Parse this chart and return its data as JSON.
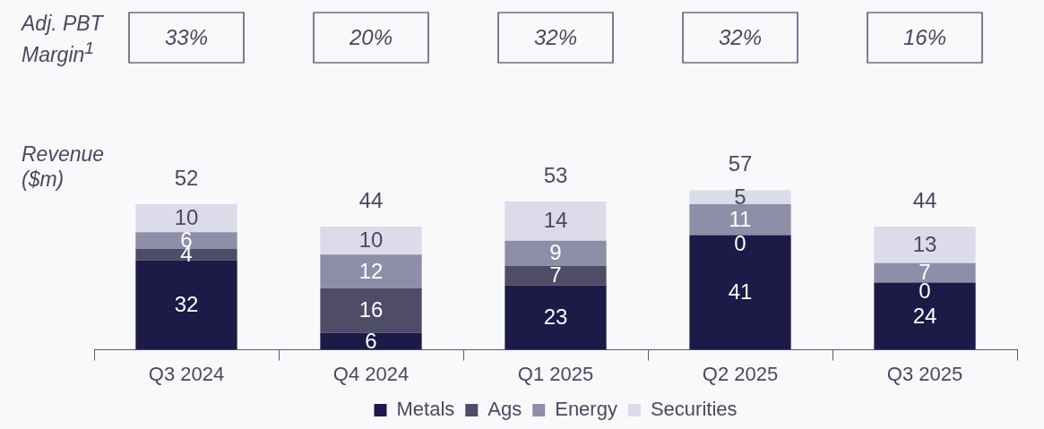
{
  "chart_data": {
    "type": "bar",
    "stacked": true,
    "ylabel": "Revenue ($m)",
    "categories": [
      "Q3 2024",
      "Q4 2024",
      "Q1 2025",
      "Q2 2025",
      "Q3 2025"
    ],
    "series": [
      {
        "name": "Metals",
        "color": "#1c1a47",
        "values": [
          32,
          6,
          23,
          41,
          24
        ]
      },
      {
        "name": "Ags",
        "color": "#4e4c67",
        "values": [
          4,
          16,
          7,
          0,
          0
        ]
      },
      {
        "name": "Energy",
        "color": "#8f8ea9",
        "values": [
          6,
          12,
          9,
          11,
          7
        ]
      },
      {
        "name": "Securities",
        "color": "#dcdbea",
        "values": [
          10,
          10,
          14,
          5,
          13
        ]
      }
    ],
    "data_labels": true,
    "totals": [
      "52",
      "44",
      "53",
      "57",
      "44"
    ],
    "legend": "bottom",
    "grid": false,
    "annotations": [
      "Adj. PBT Margin$^{1}$",
      "33%",
      "20%",
      "32%",
      "32%",
      "16%"
    ]
  }
}
